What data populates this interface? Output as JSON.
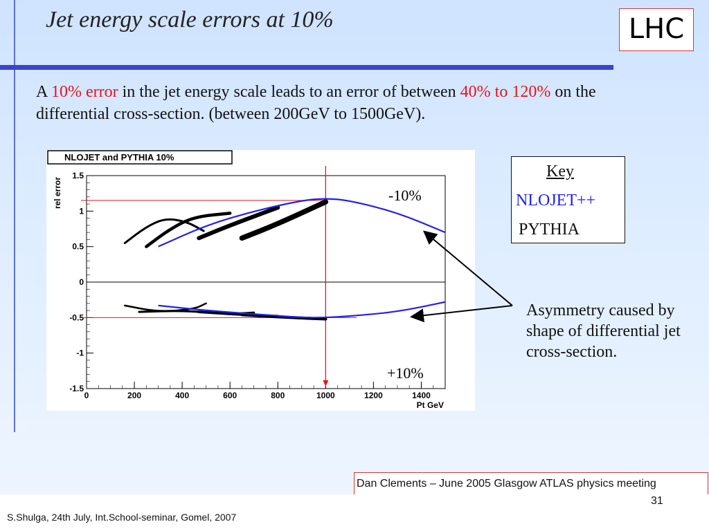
{
  "slide": {
    "title": "Jet energy scale errors at 10%",
    "badge": "LHC",
    "body": {
      "p1": "A ",
      "p2": "10% error",
      "p3": " in the jet energy scale leads to an error of between ",
      "p4": "40% to 120%",
      "p5": " on the differential cross-section. (between 200GeV to 1500GeV)."
    },
    "key": {
      "title": "Key",
      "nlojet": "NLOJET++",
      "pythia": "PYTHIA"
    },
    "asymmetry_note": "Asymmetry caused by shape of differential jet cross-section.",
    "credit": "Dan Clements – June 2005  Glasgow ATLAS physics meeting",
    "page_number": "31",
    "author_line": "S.Shulga, 24th July, Int.School-seminar, Gomel, 2007"
  },
  "colors": {
    "accent_red": "#e4141b",
    "rule_blue": "#3b44c9",
    "nlojet_blue": "#2020ee"
  },
  "chart_data": {
    "type": "line",
    "title": "NLOJET and PYTHIA 10%",
    "xlabel": "Pt  GeV",
    "ylabel": "rel error",
    "xlim": [
      0,
      1500
    ],
    "ylim": [
      -1.5,
      1.5
    ],
    "x_ticks": [
      0,
      200,
      400,
      600,
      800,
      1000,
      1200,
      1400
    ],
    "y_ticks": [
      -1.5,
      -1,
      -0.5,
      0,
      0.5,
      1,
      1.5
    ],
    "y_tick_labels": [
      "-1.5",
      "-1",
      "-0.5",
      "0",
      "0.5",
      "1",
      "1.5"
    ],
    "annotations": {
      "minus10": "-10%",
      "plus10": "+10%"
    },
    "reference_lines": {
      "vertical_x": 1000,
      "horizontal_y_upper": 1.15,
      "horizontal_y_lower": -0.5
    },
    "series": [
      {
        "name": "NLOJET++",
        "color": "#2020ee",
        "upper_x": [
          300,
          500,
          700,
          900,
          1000,
          1100,
          1300,
          1500
        ],
        "upper_y": [
          0.5,
          0.8,
          1.0,
          1.15,
          1.18,
          1.15,
          0.98,
          0.7
        ],
        "lower_x": [
          300,
          500,
          700,
          900,
          1000,
          1100,
          1300,
          1500
        ],
        "lower_y": [
          -0.33,
          -0.4,
          -0.45,
          -0.5,
          -0.5,
          -0.48,
          -0.42,
          -0.28
        ]
      },
      {
        "name": "PYTHIA",
        "color": "#000000",
        "upper_segments": [
          {
            "x": [
              160,
              250,
              330,
              420,
              490
            ],
            "y": [
              0.55,
              0.78,
              0.9,
              0.85,
              0.72
            ]
          },
          {
            "x": [
              250,
              350,
              450,
              600
            ],
            "y": [
              0.5,
              0.75,
              0.92,
              0.97
            ]
          },
          {
            "x": [
              470,
              600,
              800
            ],
            "y": [
              0.62,
              0.8,
              1.05
            ]
          },
          {
            "x": [
              650,
              800,
              1000
            ],
            "y": [
              0.62,
              0.82,
              1.13
            ]
          }
        ],
        "lower_segments": [
          {
            "x": [
              160,
              300,
              450,
              500
            ],
            "y": [
              -0.33,
              -0.42,
              -0.38,
              -0.3
            ]
          },
          {
            "x": [
              220,
              400,
              600,
              700
            ],
            "y": [
              -0.42,
              -0.4,
              -0.45,
              -0.43
            ]
          },
          {
            "x": [
              470,
              650,
              800
            ],
            "y": [
              -0.42,
              -0.46,
              -0.48
            ]
          },
          {
            "x": [
              650,
              850,
              1000
            ],
            "y": [
              -0.46,
              -0.5,
              -0.52
            ]
          }
        ]
      }
    ]
  }
}
